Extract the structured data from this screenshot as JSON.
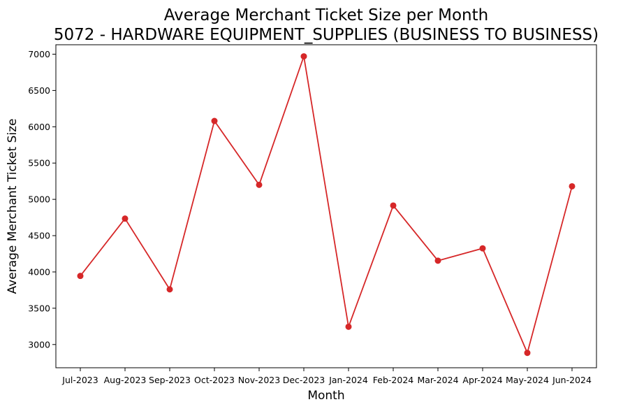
{
  "chart_data": {
    "type": "line",
    "title": "Average Merchant Ticket Size per Month",
    "subtitle": "5072 - HARDWARE EQUIPMENT_SUPPLIES (BUSINESS TO BUSINESS)",
    "xlabel": "Month",
    "ylabel": "Average Merchant Ticket Size",
    "categories": [
      "Jul-2023",
      "Aug-2023",
      "Sep-2023",
      "Oct-2023",
      "Nov-2023",
      "Dec-2023",
      "Jan-2024",
      "Feb-2024",
      "Mar-2024",
      "Apr-2024",
      "May-2024",
      "Jun-2024"
    ],
    "series": [
      {
        "values": [
          3945,
          4735,
          3760,
          6080,
          5200,
          6970,
          3245,
          4915,
          4155,
          4325,
          2885,
          5180
        ]
      }
    ],
    "ylim": [
      2680,
      7130
    ],
    "yticks": [
      3000,
      3500,
      4000,
      4500,
      5000,
      5500,
      6000,
      6500,
      7000
    ],
    "grid": false,
    "legend": "none",
    "line_color": "#d62728"
  }
}
